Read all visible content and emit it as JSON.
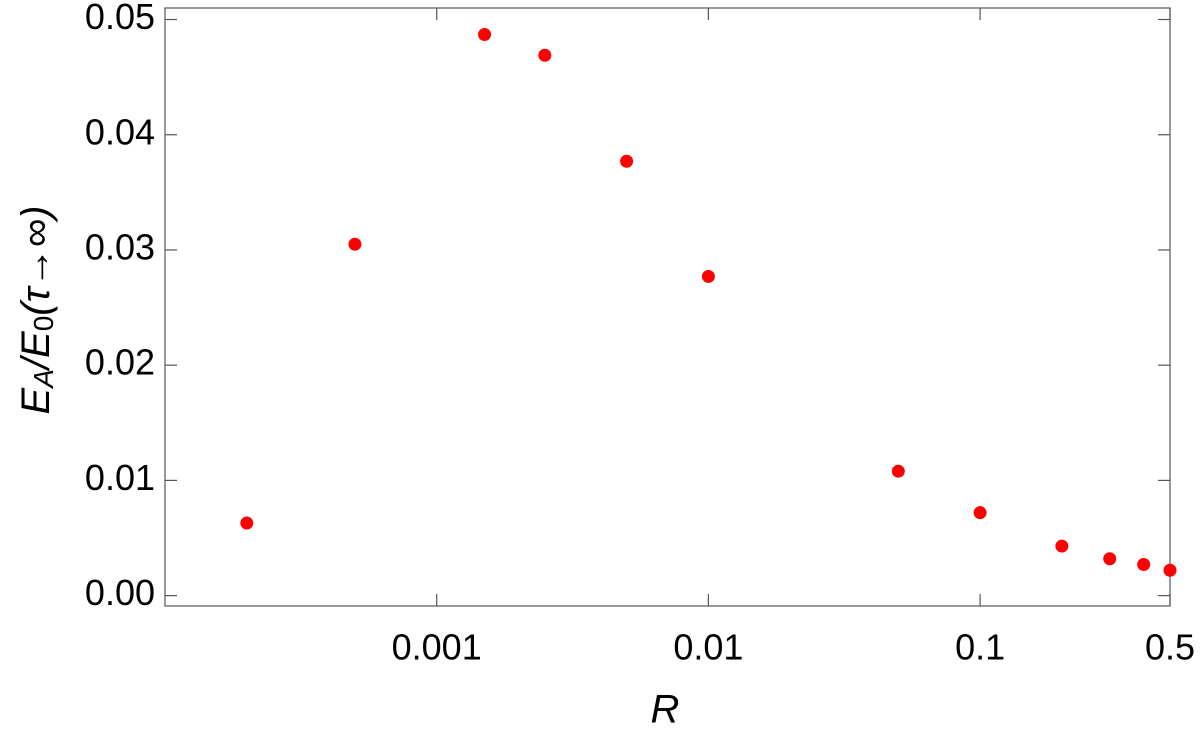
{
  "chart_data": {
    "type": "scatter",
    "x_label": "R",
    "y_label": [
      "E",
      "A",
      "/E",
      "0",
      "(τ→∞)"
    ],
    "series": [
      {
        "color": "#ff0000",
        "x": [
          0.0002,
          0.0005,
          0.0015,
          0.0025,
          0.005,
          0.01,
          0.05,
          0.1,
          0.2,
          0.3,
          0.4,
          0.5
        ],
        "values": [
          0.0063,
          0.0305,
          0.0487,
          0.0469,
          0.0377,
          0.0277,
          0.0108,
          0.0072,
          0.0043,
          0.0032,
          0.0027,
          0.0022
        ]
      }
    ],
    "xlim": [
      0.0001,
      0.5
    ],
    "xscale": "log",
    "xticks": [
      0.001,
      0.01,
      0.1,
      0.5
    ],
    "ylim": [
      -0.0009,
      0.051
    ],
    "yticks": [
      {
        "value": 0,
        "label": "0.00"
      },
      0.01,
      0.02,
      0.03,
      0.04,
      0.05
    ]
  }
}
